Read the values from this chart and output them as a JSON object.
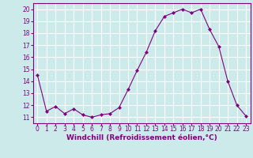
{
  "x": [
    0,
    1,
    2,
    3,
    4,
    5,
    6,
    7,
    8,
    9,
    10,
    11,
    12,
    13,
    14,
    15,
    16,
    17,
    18,
    19,
    20,
    21,
    22,
    23
  ],
  "y": [
    14.5,
    11.5,
    11.9,
    11.3,
    11.7,
    11.2,
    11.0,
    11.2,
    11.3,
    11.8,
    13.3,
    14.9,
    16.4,
    18.2,
    19.4,
    19.7,
    20.0,
    19.7,
    20.0,
    18.3,
    16.9,
    14.0,
    12.0,
    11.1
  ],
  "line_color": "#800080",
  "marker": "D",
  "marker_size": 2,
  "background_color": "#cceaea",
  "grid_color": "#b0d8d8",
  "xlabel": "Windchill (Refroidissement éolien,°C)",
  "xlabel_color": "#800080",
  "tick_color": "#800080",
  "spine_color": "#800080",
  "ylim": [
    10.5,
    20.5
  ],
  "xlim": [
    -0.5,
    23.5
  ],
  "yticks": [
    11,
    12,
    13,
    14,
    15,
    16,
    17,
    18,
    19,
    20
  ],
  "xticks": [
    0,
    1,
    2,
    3,
    4,
    5,
    6,
    7,
    8,
    9,
    10,
    11,
    12,
    13,
    14,
    15,
    16,
    17,
    18,
    19,
    20,
    21,
    22,
    23
  ],
  "xlabel_fontsize": 6.5,
  "tick_fontsize": 5.5
}
